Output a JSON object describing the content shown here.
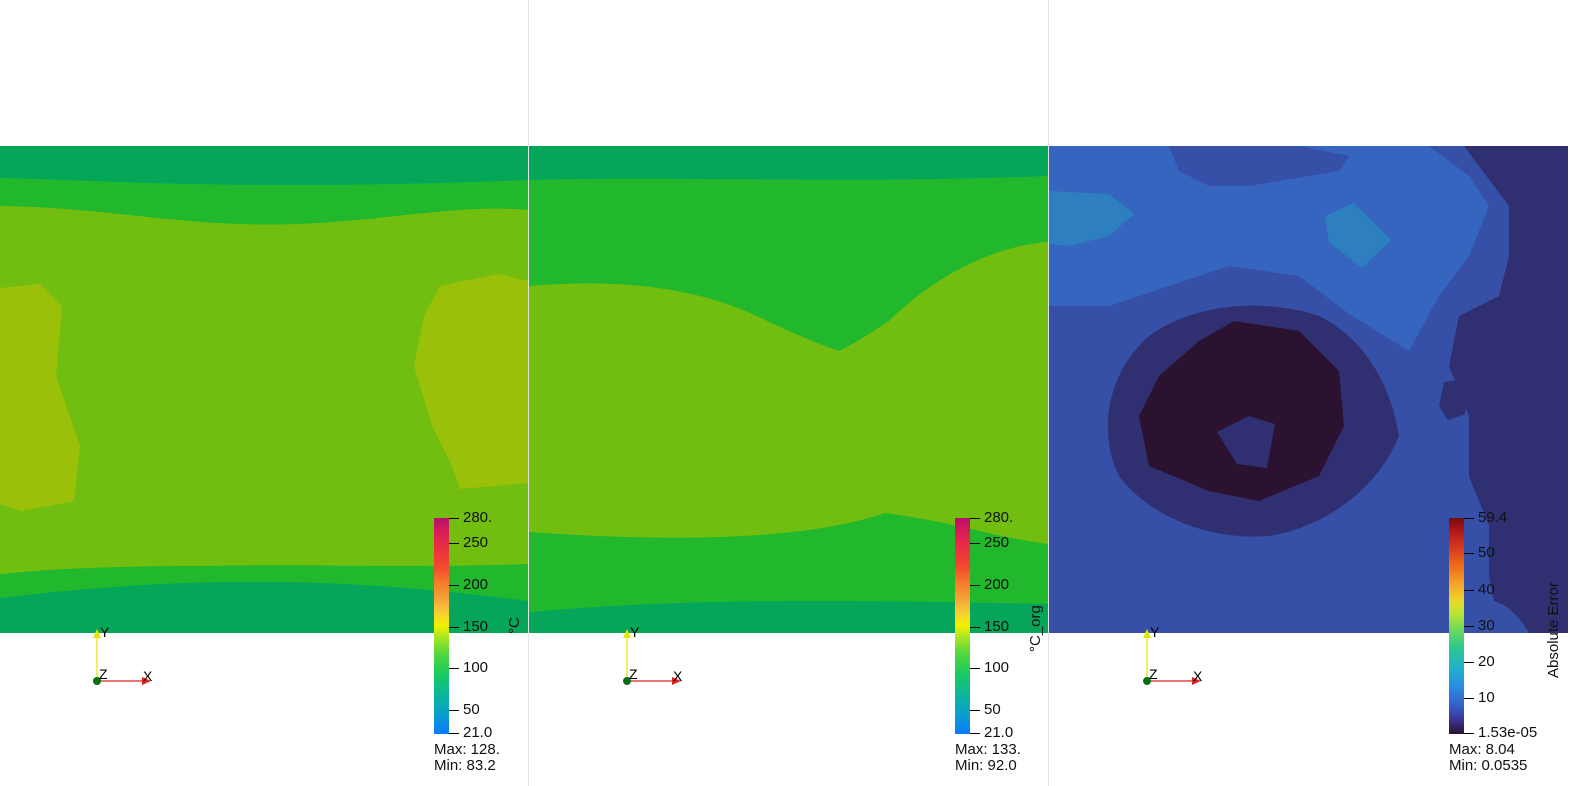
{
  "panels": [
    {
      "scalar_label": "°C",
      "colorbar": {
        "palette": [
          "#e9f400",
          "#f0e400",
          "#1fc3b0",
          "#1e9aff"
        ],
        "ticks": [
          "280.",
          "250",
          "200",
          "150",
          "100",
          "50",
          "21.0"
        ],
        "tick_values": [
          280,
          250,
          200,
          150,
          100,
          50,
          21
        ]
      },
      "stats": {
        "max": "Max: 128.",
        "min": "Min: 83.2"
      },
      "axes": {
        "y": "Y",
        "z": "Z",
        "x": "X"
      }
    },
    {
      "scalar_label": "°C_org",
      "colorbar": {
        "ticks": [
          "280.",
          "250",
          "200",
          "150",
          "100",
          "50",
          "21.0"
        ],
        "tick_values": [
          280,
          250,
          200,
          150,
          100,
          50,
          21
        ]
      },
      "stats": {
        "max": "Max: 133.",
        "min": "Min: 92.0"
      },
      "axes": {
        "y": "Y",
        "z": "Z",
        "x": "X"
      }
    },
    {
      "scalar_label": "Absolute Error",
      "colorbar": {
        "ticks": [
          "59.4",
          "50",
          "40",
          "30",
          "20",
          "10",
          "1.53e-05"
        ],
        "tick_values": [
          59.4,
          50,
          40,
          30,
          20,
          10,
          1.53e-05
        ]
      },
      "stats": {
        "max": "Max: 8.04",
        "min": "Min: 0.0535"
      },
      "axes": {
        "y": "Y",
        "z": "Z",
        "x": "X"
      }
    }
  ],
  "colors": {
    "temp_dark_green": "#06a65a",
    "temp_green": "#22b82d",
    "temp_yellow_green": "#72be10",
    "temp_olive": "#9bc00a",
    "err_dark": "#2a1230",
    "err_navy": "#2f2f72",
    "err_blue": "#3550a6",
    "err_light_blue": "#3565bf",
    "err_teal": "#2e7fc0"
  }
}
